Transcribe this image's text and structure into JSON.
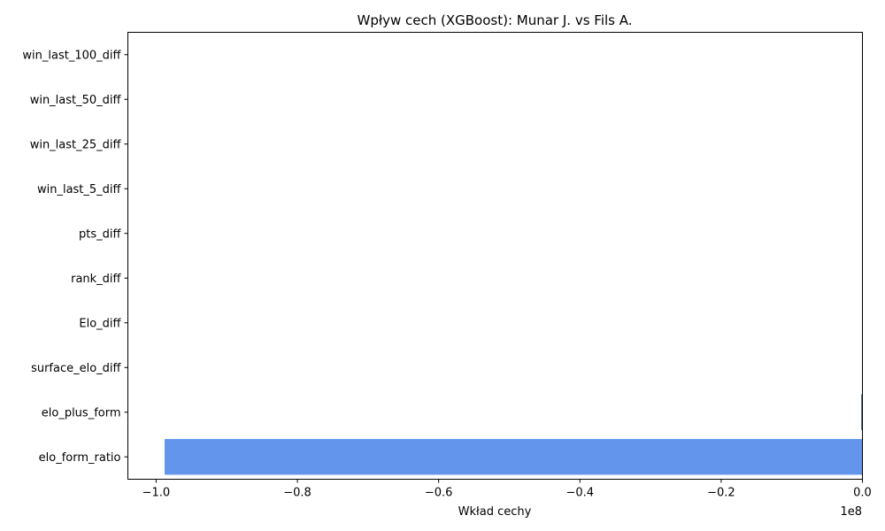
{
  "chart_data": {
    "type": "bar",
    "orientation": "horizontal",
    "title": "Wpływ cech (XGBoost): Munar J. vs Fils A.",
    "xlabel": "Wkład cechy",
    "ylabel": "",
    "xlim": [
      -1.04,
      0.0
    ],
    "x_offset_label": "1e8",
    "x_ticks": [
      -1.0,
      -0.8,
      -0.6,
      -0.4,
      -0.2,
      0.0
    ],
    "x_tick_labels": [
      "−1.0",
      "−0.8",
      "−0.6",
      "−0.4",
      "−0.2",
      "0.0"
    ],
    "categories": [
      "elo_form_ratio",
      "elo_plus_form",
      "surface_elo_diff",
      "Elo_diff",
      "rank_diff",
      "pts_diff",
      "win_last_5_diff",
      "win_last_25_diff",
      "win_last_50_diff",
      "win_last_100_diff"
    ],
    "values": [
      -0.988,
      -0.0001,
      0,
      0,
      0,
      0,
      0,
      0,
      0,
      0
    ],
    "negative_color": "#6495ED",
    "positive_color": "#1f3a7a",
    "grid": false,
    "legend": "none"
  }
}
